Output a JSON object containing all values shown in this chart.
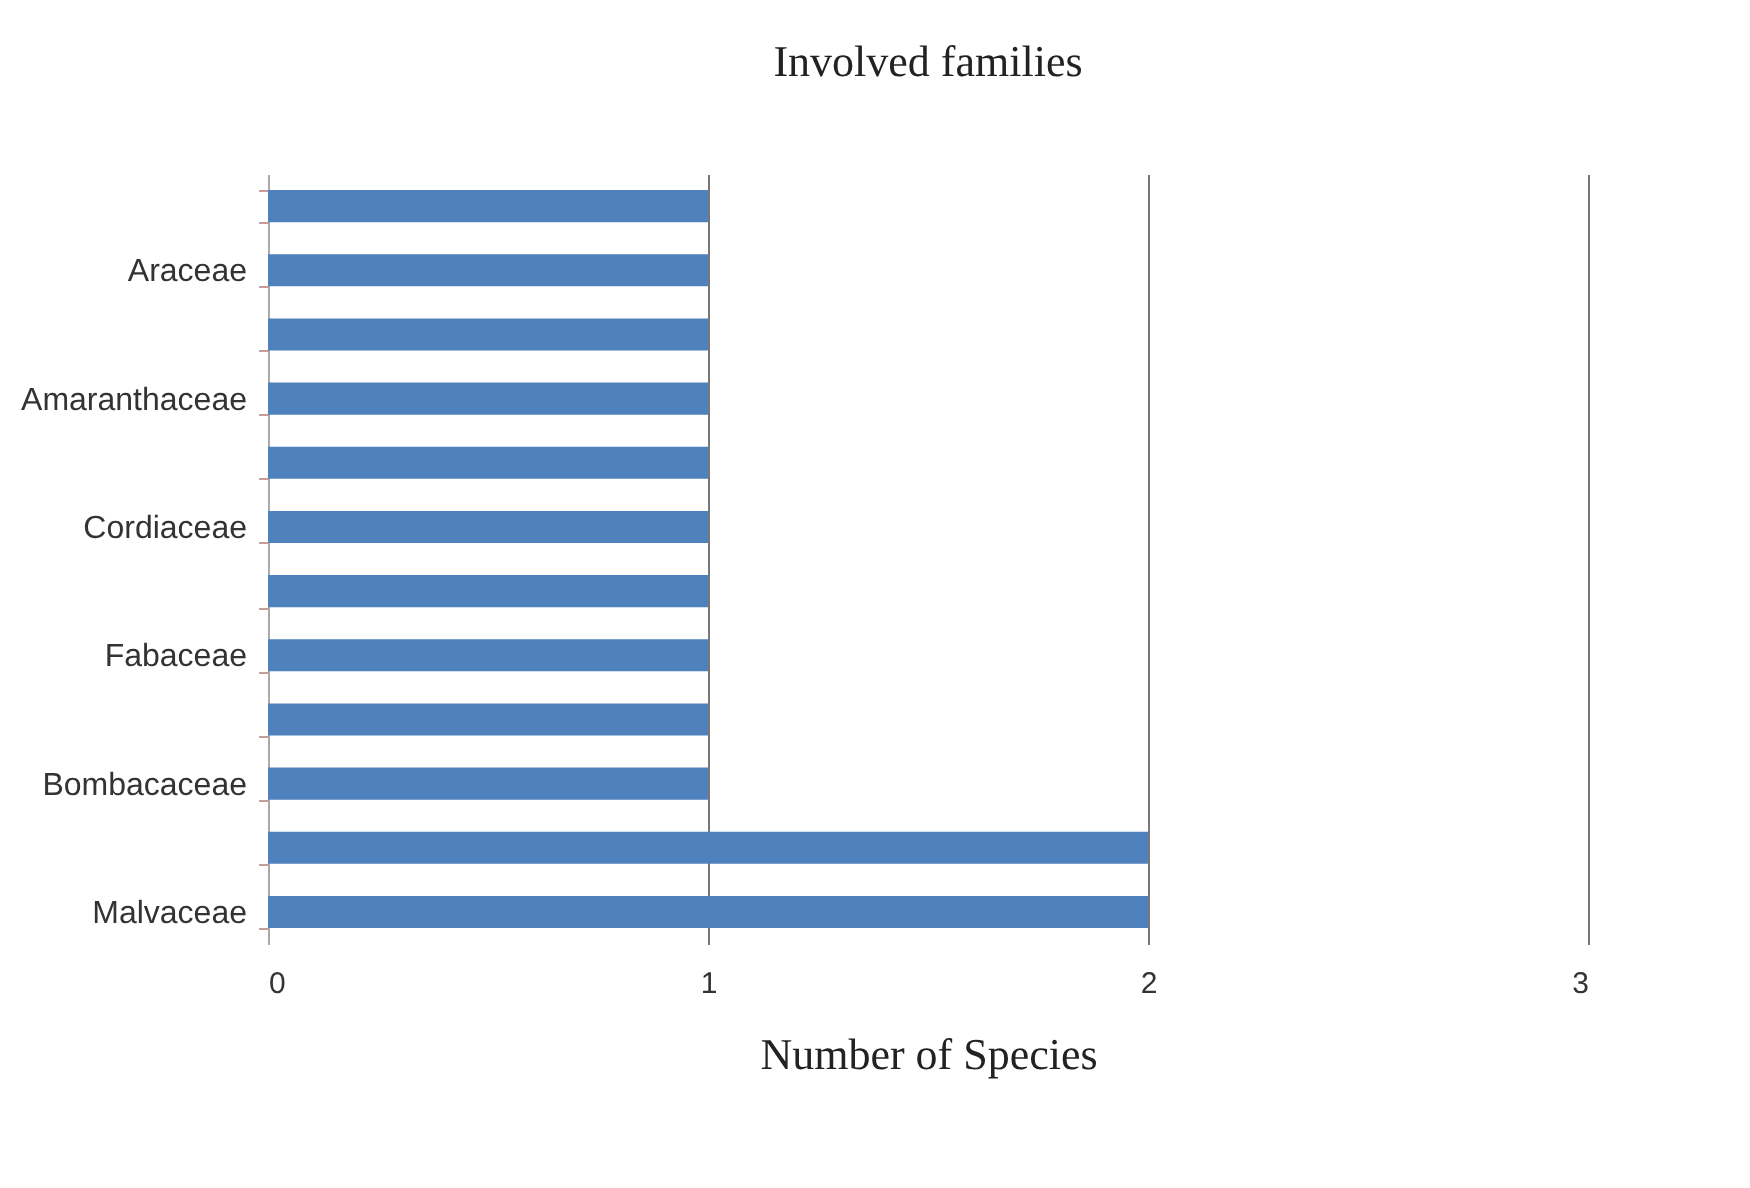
{
  "chart_data": {
    "type": "bar",
    "orientation": "horizontal",
    "title": "Involved families",
    "xlabel": "Number of Species",
    "categories": [
      null,
      "Araceae",
      null,
      "Amaranthaceae",
      null,
      "Cordiaceae",
      null,
      "Fabaceae",
      null,
      "Bombacaceae",
      null,
      "Malvaceae"
    ],
    "values": [
      1,
      1,
      1,
      1,
      1,
      1,
      1,
      1,
      1,
      1,
      2,
      2
    ],
    "color": "#4f81bd",
    "xlim": [
      0,
      3
    ],
    "xticks": [
      0,
      1,
      2,
      3
    ],
    "grid": "x"
  }
}
